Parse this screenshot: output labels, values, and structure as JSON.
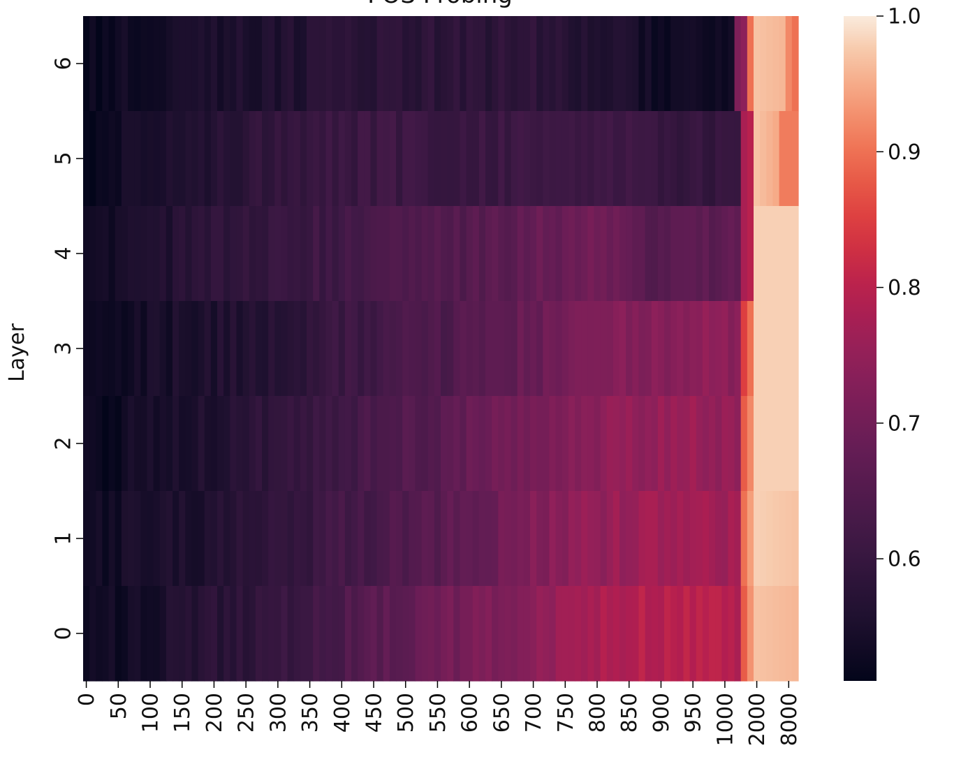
{
  "chart_data": {
    "type": "heatmap",
    "title": "POS Probing",
    "xlabel": "",
    "ylabel": "Layer",
    "x_tick_labels": [
      "0",
      "50",
      "100",
      "150",
      "200",
      "250",
      "300",
      "350",
      "400",
      "450",
      "500",
      "550",
      "600",
      "650",
      "700",
      "750",
      "800",
      "850",
      "900",
      "950",
      "1000",
      "2000",
      "8000"
    ],
    "y_tick_labels": [
      "6",
      "5",
      "4",
      "3",
      "2",
      "1",
      "0"
    ],
    "rows": [
      "6",
      "5",
      "4",
      "3",
      "2",
      "1",
      "0"
    ],
    "columns": 112,
    "colorscale": "rocket",
    "vmin": 0.51,
    "vmax": 1.0,
    "colorbar_ticks": [
      "0.6",
      "0.7",
      "0.8",
      "0.9",
      "1.0"
    ],
    "colorbar_tick_values": [
      0.6,
      0.7,
      0.8,
      0.9,
      1.0
    ],
    "row_profiles": {
      "6": [
        [
          0,
          0.52
        ],
        [
          10,
          0.54
        ],
        [
          30,
          0.56
        ],
        [
          45,
          0.58
        ],
        [
          55,
          0.58
        ],
        [
          70,
          0.58
        ],
        [
          80,
          0.56
        ],
        [
          92,
          0.53
        ],
        [
          101,
          0.53
        ],
        [
          102,
          0.72
        ],
        [
          103,
          0.74
        ],
        [
          104,
          0.9
        ],
        [
          105,
          0.97
        ],
        [
          109,
          0.96
        ],
        [
          110,
          0.92
        ],
        [
          111,
          0.9
        ]
      ],
      "5": [
        [
          0,
          0.52
        ],
        [
          7,
          0.54
        ],
        [
          20,
          0.57
        ],
        [
          30,
          0.6
        ],
        [
          45,
          0.61
        ],
        [
          60,
          0.61
        ],
        [
          75,
          0.61
        ],
        [
          85,
          0.62
        ],
        [
          92,
          0.6
        ],
        [
          102,
          0.6
        ],
        [
          103,
          0.78
        ],
        [
          104,
          0.8
        ],
        [
          105,
          0.97
        ],
        [
          108,
          0.95
        ],
        [
          109,
          0.91
        ],
        [
          111,
          0.91
        ]
      ],
      "4": [
        [
          0,
          0.52
        ],
        [
          6,
          0.55
        ],
        [
          20,
          0.58
        ],
        [
          35,
          0.61
        ],
        [
          50,
          0.64
        ],
        [
          60,
          0.65
        ],
        [
          70,
          0.68
        ],
        [
          80,
          0.7
        ],
        [
          88,
          0.65
        ],
        [
          95,
          0.66
        ],
        [
          102,
          0.67
        ],
        [
          103,
          0.78
        ],
        [
          104,
          0.8
        ],
        [
          105,
          0.98
        ],
        [
          111,
          0.98
        ]
      ],
      "3": [
        [
          0,
          0.52
        ],
        [
          15,
          0.55
        ],
        [
          30,
          0.57
        ],
        [
          45,
          0.62
        ],
        [
          55,
          0.64
        ],
        [
          65,
          0.67
        ],
        [
          75,
          0.7
        ],
        [
          85,
          0.73
        ],
        [
          95,
          0.74
        ],
        [
          102,
          0.74
        ],
        [
          103,
          0.85
        ],
        [
          104,
          0.9
        ],
        [
          105,
          0.98
        ],
        [
          111,
          0.98
        ]
      ],
      "2": [
        [
          0,
          0.52
        ],
        [
          20,
          0.56
        ],
        [
          40,
          0.62
        ],
        [
          55,
          0.66
        ],
        [
          65,
          0.7
        ],
        [
          75,
          0.73
        ],
        [
          85,
          0.75
        ],
        [
          95,
          0.76
        ],
        [
          102,
          0.74
        ],
        [
          103,
          0.88
        ],
        [
          104,
          0.92
        ],
        [
          105,
          0.98
        ],
        [
          111,
          0.98
        ]
      ],
      "1": [
        [
          0,
          0.53
        ],
        [
          20,
          0.56
        ],
        [
          40,
          0.62
        ],
        [
          55,
          0.66
        ],
        [
          65,
          0.7
        ],
        [
          75,
          0.74
        ],
        [
          85,
          0.76
        ],
        [
          95,
          0.77
        ],
        [
          102,
          0.77
        ],
        [
          103,
          0.9
        ],
        [
          104,
          0.94
        ],
        [
          105,
          0.98
        ],
        [
          111,
          0.97
        ]
      ],
      "0": [
        [
          0,
          0.52
        ],
        [
          15,
          0.56
        ],
        [
          30,
          0.6
        ],
        [
          45,
          0.66
        ],
        [
          60,
          0.71
        ],
        [
          70,
          0.74
        ],
        [
          80,
          0.78
        ],
        [
          90,
          0.8
        ],
        [
          100,
          0.79
        ],
        [
          102,
          0.78
        ],
        [
          103,
          0.88
        ],
        [
          104,
          0.93
        ],
        [
          105,
          0.97
        ],
        [
          111,
          0.96
        ]
      ]
    }
  }
}
